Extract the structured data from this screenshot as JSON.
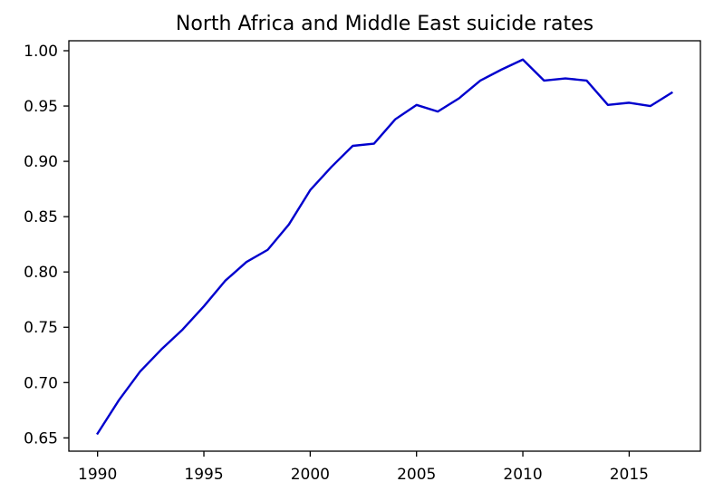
{
  "chart_data": {
    "type": "line",
    "title": "North Africa and Middle East suicide rates",
    "xlabel": "",
    "ylabel": "",
    "xlim": [
      1988.65,
      2018.35
    ],
    "ylim": [
      0.638,
      1.009
    ],
    "x_ticks": [
      1990,
      1995,
      2000,
      2005,
      2010,
      2015
    ],
    "y_ticks": [
      0.65,
      0.7,
      0.75,
      0.8,
      0.85,
      0.9,
      0.95,
      1.0
    ],
    "y_tick_labels": [
      "0.65",
      "0.70",
      "0.75",
      "0.80",
      "0.85",
      "0.90",
      "0.95",
      "1.00"
    ],
    "grid": false,
    "legend": "none",
    "series": [
      {
        "color": "#0000cd",
        "x": [
          1990,
          1991,
          1992,
          1993,
          1994,
          1995,
          1996,
          1997,
          1998,
          1999,
          2000,
          2001,
          2002,
          2003,
          2004,
          2005,
          2006,
          2007,
          2008,
          2009,
          2010,
          2011,
          2012,
          2013,
          2014,
          2015,
          2016,
          2017
        ],
        "values": [
          0.654,
          0.684,
          0.71,
          0.73,
          0.748,
          0.769,
          0.792,
          0.809,
          0.82,
          0.843,
          0.874,
          0.895,
          0.914,
          0.916,
          0.938,
          0.951,
          0.945,
          0.957,
          0.973,
          0.983,
          0.992,
          0.973,
          0.975,
          0.973,
          0.951,
          0.953,
          0.95,
          0.962
        ]
      }
    ]
  }
}
